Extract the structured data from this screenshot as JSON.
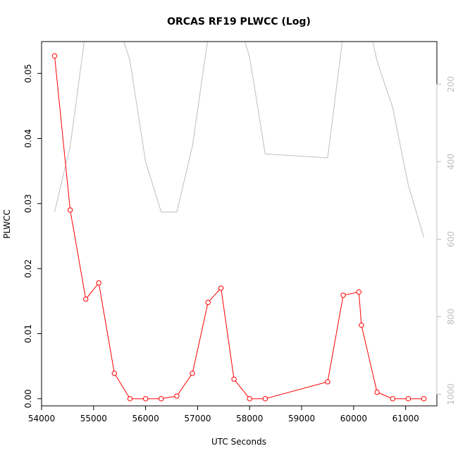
{
  "chart_data": {
    "type": "line",
    "title": "ORCAS RF19 PLWCC (Log)",
    "xlabel": "UTC Seconds",
    "ylabel": "PLWCC",
    "xlim": [
      54000,
      61600
    ],
    "ylim": [
      -0.0011,
      0.0549
    ],
    "x_ticks": [
      54000,
      55000,
      56000,
      57000,
      58000,
      59000,
      60000,
      61000
    ],
    "x_tick_labels": [
      "54000",
      "55000",
      "56000",
      "57000",
      "58000",
      "59000",
      "60000",
      "61000"
    ],
    "y_ticks": [
      0.0,
      0.01,
      0.02,
      0.03,
      0.04,
      0.05
    ],
    "y_tick_labels": [
      "0.00",
      "0.01",
      "0.02",
      "0.03",
      "0.04",
      "0.05"
    ],
    "y2_range_top_to_bottom": [
      90,
      1030
    ],
    "y2_ticks": [
      200,
      400,
      600,
      800,
      1000
    ],
    "y2_tick_labels": [
      "200",
      "400",
      "600",
      "800",
      "1000"
    ],
    "colors": {
      "primary": "#ff0000",
      "secondary": "#bebebe",
      "axis": "#000000"
    },
    "series": [
      {
        "axis": "left",
        "marker": "open-circle",
        "x": [
          54250,
          54550,
          54850,
          55100,
          55400,
          55700,
          56000,
          56300,
          56600,
          56900,
          57200,
          57450,
          57700,
          58000,
          58300,
          59500,
          59800,
          60100,
          60150,
          60450,
          60750,
          61050,
          61350
        ],
        "values": [
          0.0527,
          0.029,
          0.0153,
          0.0178,
          0.0039,
          0.0,
          0.0,
          0.0,
          0.0004,
          0.0039,
          0.0148,
          0.017,
          0.003,
          0.0,
          0.0,
          0.0026,
          0.0159,
          0.0164,
          0.0113,
          0.001,
          0.0,
          0.0,
          0.0
        ]
      },
      {
        "axis": "right",
        "marker": "none",
        "x": [
          54250,
          54550,
          54850,
          55100,
          55400,
          55700,
          56000,
          56300,
          56600,
          56900,
          57200,
          57450,
          57700,
          58000,
          58300,
          59500,
          59800,
          60100,
          60150,
          60450,
          60750,
          61050,
          61350
        ],
        "values": [
          530,
          360,
          60,
          -40,
          10,
          140,
          400,
          530,
          530,
          360,
          80,
          -20,
          0,
          130,
          380,
          390,
          70,
          -30,
          -40,
          140,
          260,
          460,
          595
        ]
      }
    ]
  }
}
